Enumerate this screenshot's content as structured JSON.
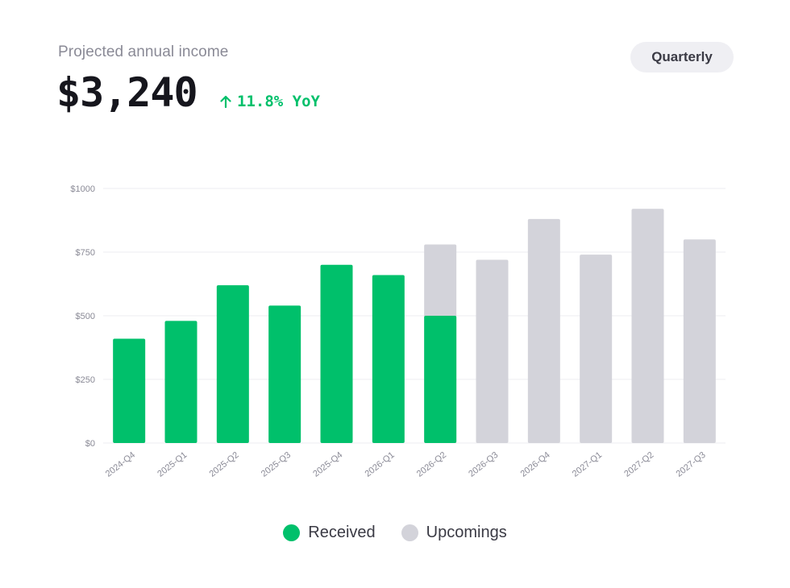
{
  "header": {
    "label": "Projected annual income",
    "amount": "$3,240",
    "growth": "11.8% YoY",
    "growth_icon": "arrow-up-icon"
  },
  "controls": {
    "period_label": "Quarterly"
  },
  "colors": {
    "received": "#00c06b",
    "upcoming": "#d3d3da",
    "grid": "#ececf0",
    "tick": "#8a8a96"
  },
  "chart_data": {
    "type": "bar",
    "categories": [
      "2024-Q4",
      "2025-Q1",
      "2025-Q2",
      "2025-Q3",
      "2025-Q4",
      "2026-Q1",
      "2026-Q2",
      "2026-Q3",
      "2026-Q4",
      "2027-Q1",
      "2027-Q2",
      "2027-Q3"
    ],
    "series": [
      {
        "name": "Received",
        "values": [
          410,
          480,
          620,
          540,
          700,
          660,
          500,
          null,
          null,
          null,
          null,
          null
        ]
      },
      {
        "name": "Upcomings",
        "values": [
          null,
          null,
          null,
          null,
          null,
          null,
          780,
          720,
          880,
          740,
          920,
          800
        ]
      }
    ],
    "ylim": [
      0,
      1000
    ],
    "yticks": [
      0,
      250,
      500,
      750,
      1000
    ],
    "ytick_labels": [
      "$0",
      "$250",
      "$500",
      "$750",
      "$1000"
    ],
    "grid": true,
    "legend": "bottom-center",
    "title": "",
    "xlabel": "",
    "ylabel": ""
  }
}
